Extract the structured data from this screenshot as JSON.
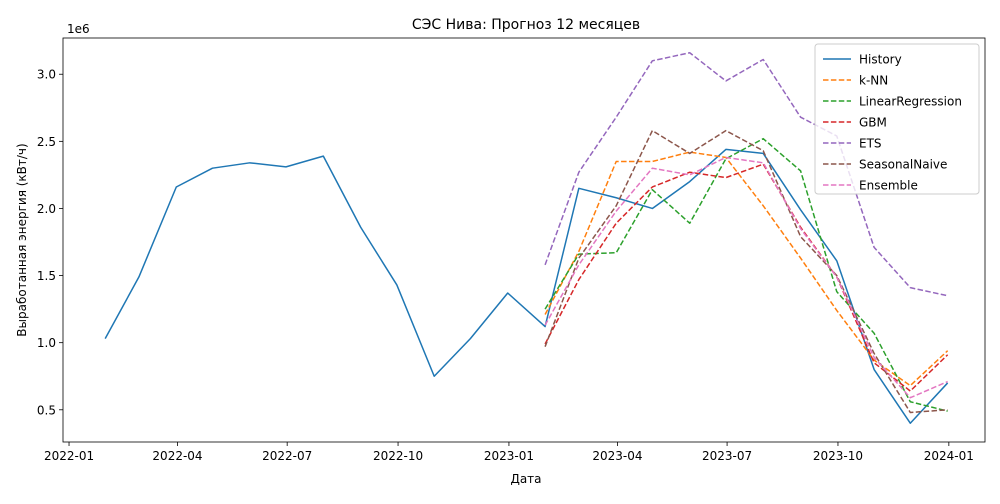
{
  "chart_data": {
    "type": "line",
    "title": "СЭС Нива: Прогноз 12 месяцев",
    "xlabel": "Дата",
    "ylabel": "Выработанная энергия (кВт/ч)",
    "y_scale_label": "1e6",
    "xlim": [
      "2021-12-27",
      "2024-01-31"
    ],
    "ylim": [
      0.26,
      3.27
    ],
    "x_ticks": [
      {
        "date": "2022-01-01",
        "label": "2022-01"
      },
      {
        "date": "2022-04-01",
        "label": "2022-04"
      },
      {
        "date": "2022-07-01",
        "label": "2022-07"
      },
      {
        "date": "2022-10-01",
        "label": "2022-10"
      },
      {
        "date": "2023-01-01",
        "label": "2023-01"
      },
      {
        "date": "2023-04-01",
        "label": "2023-04"
      },
      {
        "date": "2023-07-01",
        "label": "2023-07"
      },
      {
        "date": "2023-10-01",
        "label": "2023-10"
      },
      {
        "date": "2024-01-01",
        "label": "2024-01"
      }
    ],
    "y_ticks": [
      {
        "value": 0.5,
        "label": "0.5"
      },
      {
        "value": 1.0,
        "label": "1.0"
      },
      {
        "value": 1.5,
        "label": "1.5"
      },
      {
        "value": 2.0,
        "label": "2.0"
      },
      {
        "value": 2.5,
        "label": "2.5"
      },
      {
        "value": 3.0,
        "label": "3.0"
      }
    ],
    "grid": false,
    "legend_position": "top-right",
    "series": [
      {
        "name": "History",
        "color": "#1f77b4",
        "dashed": false,
        "x": [
          "2022-01-31",
          "2022-02-28",
          "2022-03-31",
          "2022-04-30",
          "2022-05-31",
          "2022-06-30",
          "2022-07-31",
          "2022-08-31",
          "2022-09-30",
          "2022-10-31",
          "2022-11-30",
          "2022-12-31",
          "2023-01-31",
          "2023-02-28",
          "2023-03-31",
          "2023-04-30",
          "2023-05-31",
          "2023-06-30",
          "2023-07-31",
          "2023-08-31",
          "2023-09-30",
          "2023-10-31",
          "2023-11-30",
          "2023-12-31"
        ],
        "values": [
          1.03,
          1.49,
          2.16,
          2.3,
          2.34,
          2.31,
          2.39,
          1.86,
          1.43,
          0.75,
          1.03,
          1.37,
          1.12,
          2.15,
          2.08,
          2.0,
          2.2,
          2.44,
          2.41,
          1.99,
          1.61,
          0.8,
          0.4,
          0.7
        ]
      },
      {
        "name": "k-NN",
        "color": "#ff7f0e",
        "dashed": true,
        "x": [
          "2023-01-31",
          "2023-02-28",
          "2023-03-31",
          "2023-04-30",
          "2023-05-31",
          "2023-06-30",
          "2023-07-31",
          "2023-08-31",
          "2023-09-30",
          "2023-10-31",
          "2023-11-30",
          "2023-12-31"
        ],
        "values": [
          1.21,
          1.68,
          2.35,
          2.35,
          2.42,
          2.38,
          2.02,
          1.63,
          1.24,
          0.87,
          0.68,
          0.94
        ]
      },
      {
        "name": "LinearRegression",
        "color": "#2ca02c",
        "dashed": true,
        "x": [
          "2023-01-31",
          "2023-02-28",
          "2023-03-31",
          "2023-04-30",
          "2023-05-31",
          "2023-06-30",
          "2023-07-31",
          "2023-08-31",
          "2023-09-30",
          "2023-10-31",
          "2023-11-30",
          "2023-12-31"
        ],
        "values": [
          1.25,
          1.66,
          1.67,
          2.14,
          1.89,
          2.37,
          2.52,
          2.28,
          1.38,
          1.07,
          0.56,
          0.49
        ]
      },
      {
        "name": "GBM",
        "color": "#d62728",
        "dashed": true,
        "x": [
          "2023-01-31",
          "2023-02-28",
          "2023-03-31",
          "2023-04-30",
          "2023-05-31",
          "2023-06-30",
          "2023-07-31",
          "2023-08-31",
          "2023-09-30",
          "2023-10-31",
          "2023-11-30",
          "2023-12-31"
        ],
        "values": [
          0.99,
          1.47,
          1.89,
          2.16,
          2.27,
          2.23,
          2.33,
          1.86,
          1.49,
          0.85,
          0.64,
          0.91
        ]
      },
      {
        "name": "ETS",
        "color": "#9467bd",
        "dashed": true,
        "x": [
          "2023-01-31",
          "2023-02-28",
          "2023-03-31",
          "2023-04-30",
          "2023-05-31",
          "2023-06-30",
          "2023-07-31",
          "2023-08-31",
          "2023-09-30",
          "2023-10-31",
          "2023-11-30",
          "2023-12-31"
        ],
        "values": [
          1.58,
          2.27,
          2.68,
          3.1,
          3.16,
          2.95,
          3.11,
          2.68,
          2.54,
          1.71,
          1.41,
          1.35
        ]
      },
      {
        "name": "SeasonalNaive",
        "color": "#8c564b",
        "dashed": true,
        "x": [
          "2023-01-31",
          "2023-02-28",
          "2023-03-31",
          "2023-04-30",
          "2023-05-31",
          "2023-06-30",
          "2023-07-31",
          "2023-08-31",
          "2023-09-30",
          "2023-10-31",
          "2023-11-30",
          "2023-12-31"
        ],
        "values": [
          0.97,
          1.63,
          2.02,
          2.58,
          2.41,
          2.58,
          2.43,
          1.79,
          1.5,
          0.92,
          0.48,
          0.5
        ]
      },
      {
        "name": "Ensemble",
        "color": "#e377c2",
        "dashed": true,
        "x": [
          "2023-01-31",
          "2023-02-28",
          "2023-03-31",
          "2023-04-30",
          "2023-05-31",
          "2023-06-30",
          "2023-07-31",
          "2023-08-31",
          "2023-09-30",
          "2023-10-31",
          "2023-11-30",
          "2023-12-31"
        ],
        "values": [
          1.13,
          1.58,
          1.98,
          2.3,
          2.25,
          2.38,
          2.34,
          1.85,
          1.49,
          0.89,
          0.59,
          0.71
        ]
      }
    ]
  }
}
